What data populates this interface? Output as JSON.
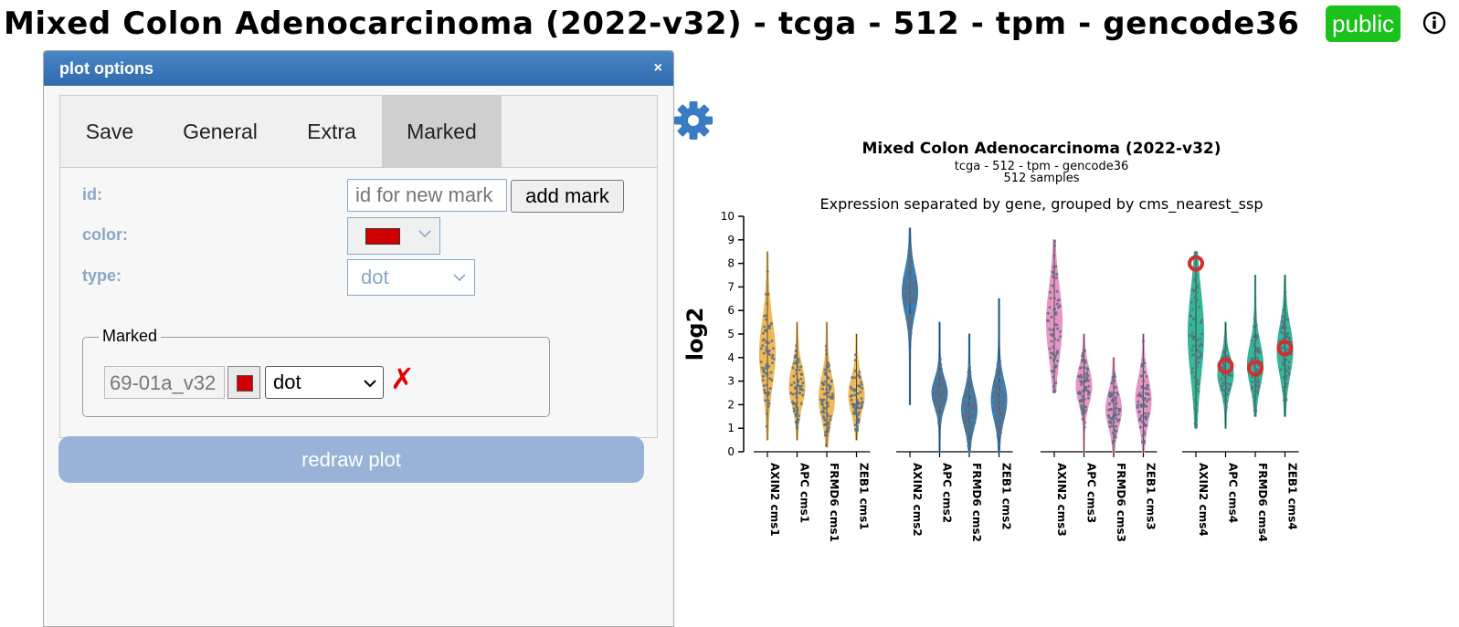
{
  "header": {
    "title": "Mixed Colon Adenocarcinoma (2022-v32) - tcga - 512 - tpm - gencode36",
    "badge": "public",
    "info_icon": "info-icon"
  },
  "dialog": {
    "title": "plot options",
    "close": "×",
    "tabs": [
      {
        "label": "Save"
      },
      {
        "label": "General"
      },
      {
        "label": "Extra"
      },
      {
        "label": "Marked",
        "active": true
      }
    ],
    "form": {
      "id_label": "id:",
      "id_placeholder": "id for new mark",
      "add_button": "add mark",
      "color_label": "color:",
      "color_value": "#d00000",
      "type_label": "type:",
      "type_value": "dot"
    },
    "marked": {
      "legend": "Marked",
      "items": [
        {
          "id": "69-01a_v32",
          "color": "#d00000",
          "type": "dot",
          "delete": "✗"
        }
      ]
    },
    "redraw_button": "redraw plot"
  },
  "chart_data": {
    "type": "violin",
    "title": "Mixed Colon Adenocarcinoma (2022-v32)",
    "subtitle1": "tcga - 512 - tpm - gencode36",
    "subtitle2": "512 samples",
    "subtitle3": "Expression separated by gene, grouped by cms_nearest_ssp",
    "ylabel": "log2",
    "ylim": [
      0,
      10
    ],
    "yticks": [
      "0",
      "1",
      "2",
      "3",
      "4",
      "5",
      "6",
      "7",
      "8",
      "9",
      "10"
    ],
    "groups": [
      {
        "name": "cms1",
        "color": "#f0b54e",
        "dot": "#5a6f86",
        "violins": [
          {
            "label": "AXIN2 cms1",
            "min": 0.5,
            "max": 8.5,
            "median": 4.2,
            "q1": 3.2,
            "q3": 5.0
          },
          {
            "label": "APC cms1",
            "min": 0.5,
            "max": 5.5,
            "median": 2.8,
            "q1": 2.3,
            "q3": 3.4
          },
          {
            "label": "FRMD6 cms1",
            "min": 0.2,
            "max": 5.5,
            "median": 2.3,
            "q1": 1.7,
            "q3": 2.9
          },
          {
            "label": "ZEB1 cms1",
            "min": 0.5,
            "max": 5.0,
            "median": 2.4,
            "q1": 1.9,
            "q3": 2.9
          }
        ]
      },
      {
        "name": "cms2",
        "color": "#2e7db8",
        "dot": "#5a6f86",
        "violins": [
          {
            "label": "AXIN2 cms2",
            "min": 2.0,
            "max": 9.5,
            "median": 6.8,
            "q1": 6.2,
            "q3": 7.4
          },
          {
            "label": "APC cms2",
            "min": 0.0,
            "max": 5.5,
            "median": 2.5,
            "q1": 2.1,
            "q3": 2.9
          },
          {
            "label": "FRMD6 cms2",
            "min": 0.0,
            "max": 5.0,
            "median": 1.8,
            "q1": 1.3,
            "q3": 2.3
          },
          {
            "label": "ZEB1 cms2",
            "min": 0.0,
            "max": 6.5,
            "median": 2.2,
            "q1": 1.7,
            "q3": 2.8
          }
        ]
      },
      {
        "name": "cms3",
        "color": "#e690c0",
        "dot": "#5a6f86",
        "violins": [
          {
            "label": "AXIN2 cms3",
            "min": 2.5,
            "max": 9.0,
            "median": 5.5,
            "q1": 4.5,
            "q3": 6.5
          },
          {
            "label": "APC cms3",
            "min": 0.0,
            "max": 5.0,
            "median": 2.8,
            "q1": 2.3,
            "q3": 3.3
          },
          {
            "label": "FRMD6 cms3",
            "min": 0.0,
            "max": 4.0,
            "median": 1.8,
            "q1": 1.3,
            "q3": 2.3
          },
          {
            "label": "ZEB1 cms3",
            "min": 0.0,
            "max": 5.0,
            "median": 2.2,
            "q1": 1.6,
            "q3": 2.8
          }
        ]
      },
      {
        "name": "cms4",
        "color": "#2bb38f",
        "dot": "#5a6f86",
        "violins": [
          {
            "label": "AXIN2 cms4",
            "min": 1.0,
            "max": 8.5,
            "median": 5.0,
            "q1": 3.8,
            "q3": 6.2
          },
          {
            "label": "APC cms4",
            "min": 1.0,
            "max": 5.5,
            "median": 3.3,
            "q1": 2.8,
            "q3": 3.7
          },
          {
            "label": "FRMD6 cms4",
            "min": 1.5,
            "max": 7.5,
            "median": 3.7,
            "q1": 3.1,
            "q3": 4.3
          },
          {
            "label": "ZEB1 cms4",
            "min": 1.5,
            "max": 7.5,
            "median": 4.3,
            "q1": 3.6,
            "q3": 5.0
          }
        ]
      }
    ],
    "marked_points": [
      {
        "violin": "AXIN2 cms4",
        "y": 8.0,
        "color": "#d03030"
      },
      {
        "violin": "APC cms4",
        "y": 3.65,
        "color": "#d03030"
      },
      {
        "violin": "FRMD6 cms4",
        "y": 3.55,
        "color": "#d03030"
      },
      {
        "violin": "ZEB1 cms4",
        "y": 4.4,
        "color": "#d03030"
      }
    ]
  }
}
